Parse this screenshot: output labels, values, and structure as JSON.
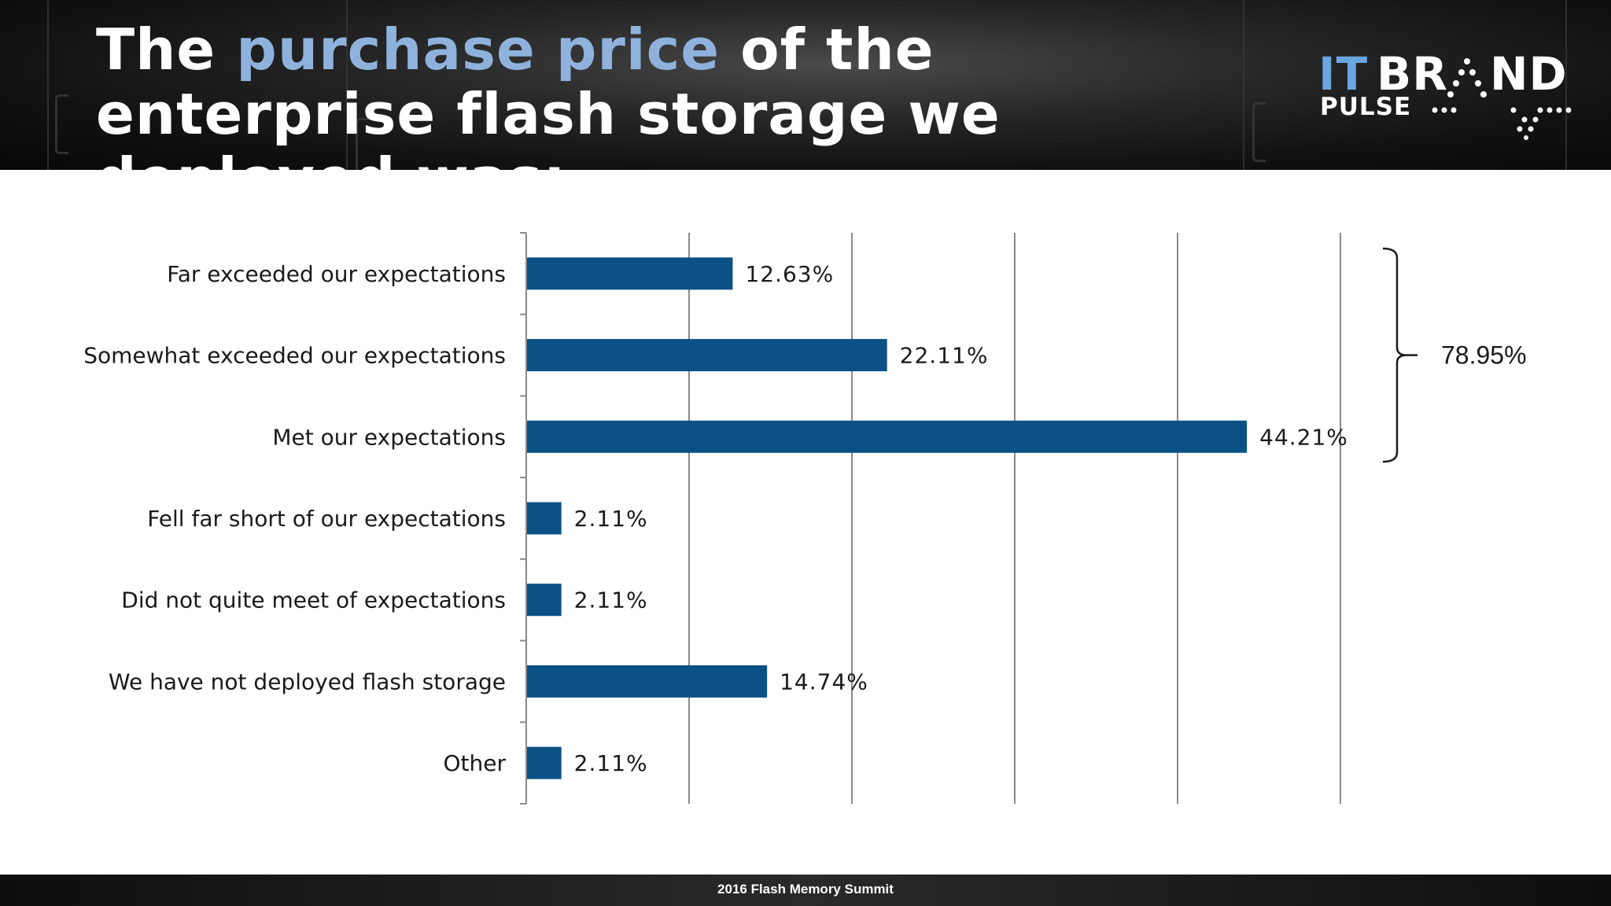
{
  "header": {
    "title_part1": "The ",
    "title_highlight": "purchase price",
    "title_part2": " of the enterprise flash storage we deployed was:",
    "highlight_color": "#8fb2dd",
    "background_color": "#1a1a1a"
  },
  "logo": {
    "it": "IT",
    "br": "BR",
    "nd": "ND",
    "pulse": "PULSE",
    "icon": "itbrand-a-dots-icon"
  },
  "chart_data": {
    "type": "bar",
    "orientation": "horizontal",
    "categories": [
      "Far exceeded our expectations",
      "Somewhat exceeded our expectations",
      "Met our expectations",
      "Fell far short of our expectations",
      "Did not quite meet of expectations",
      "We have not deployed flash storage",
      "Other"
    ],
    "values": [
      12.63,
      22.11,
      44.21,
      2.11,
      2.11,
      14.74,
      2.11
    ],
    "data_labels": [
      "12.63%",
      "22.11%",
      "44.21%",
      "2.11%",
      "2.11%",
      "14.74%",
      "2.11%"
    ],
    "xlim": [
      0,
      50
    ],
    "gridlines_at": [
      10,
      20,
      30,
      40,
      50
    ],
    "grid": true,
    "bar_color": "#0b5186",
    "bracket": {
      "label": "78.95%",
      "spans_categories": [
        0,
        2
      ]
    }
  },
  "footer": {
    "text": "2016 Flash Memory Summit"
  }
}
